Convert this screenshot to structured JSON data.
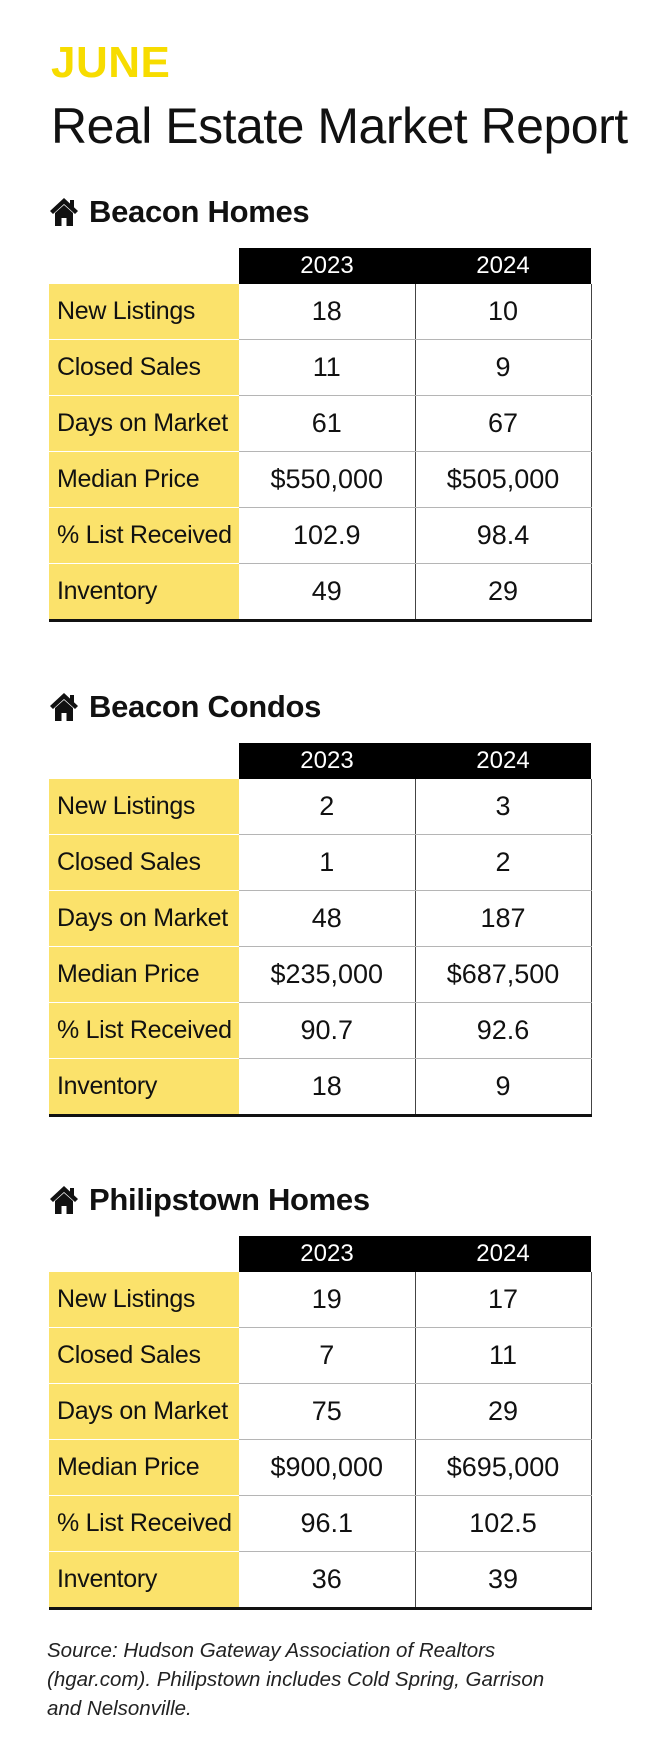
{
  "header": {
    "month": "JUNE",
    "title": "Real Estate Market Report"
  },
  "table_columns": {
    "col1": "2023",
    "col2": "2024"
  },
  "sections": [
    {
      "title": "Beacon Homes",
      "rows": [
        {
          "label": "New Listings",
          "v2023": "18",
          "v2024": "10"
        },
        {
          "label": "Closed Sales",
          "v2023": "11",
          "v2024": "9"
        },
        {
          "label": "Days on Market",
          "v2023": "61",
          "v2024": "67"
        },
        {
          "label": "Median Price",
          "v2023": "$550,000",
          "v2024": "$505,000"
        },
        {
          "label": "% List Received",
          "v2023": "102.9",
          "v2024": "98.4"
        },
        {
          "label": "Inventory",
          "v2023": "49",
          "v2024": "29"
        }
      ]
    },
    {
      "title": "Beacon Condos",
      "rows": [
        {
          "label": "New Listings",
          "v2023": "2",
          "v2024": "3"
        },
        {
          "label": "Closed Sales",
          "v2023": "1",
          "v2024": "2"
        },
        {
          "label": "Days on Market",
          "v2023": "48",
          "v2024": "187"
        },
        {
          "label": "Median Price",
          "v2023": "$235,000",
          "v2024": "$687,500"
        },
        {
          "label": "% List Received",
          "v2023": "90.7",
          "v2024": "92.6"
        },
        {
          "label": "Inventory",
          "v2023": "18",
          "v2024": "9"
        }
      ]
    },
    {
      "title": "Philipstown Homes",
      "rows": [
        {
          "label": "New Listings",
          "v2023": "19",
          "v2024": "17"
        },
        {
          "label": "Closed Sales",
          "v2023": "7",
          "v2024": "11"
        },
        {
          "label": "Days on Market",
          "v2023": "75",
          "v2024": "29"
        },
        {
          "label": "Median Price",
          "v2023": "$900,000",
          "v2024": "$695,000"
        },
        {
          "label": "% List Received",
          "v2023": "96.1",
          "v2024": "102.5"
        },
        {
          "label": "Inventory",
          "v2023": "36",
          "v2024": "39"
        }
      ]
    }
  ],
  "footer": {
    "source": "Source: Hudson Gateway Association of Realtors (hgar.com). Philipstown includes Cold Spring, Garrison and Nelsonville."
  },
  "colors": {
    "month_accent": "#f7dc00",
    "label_fill": "#fbe26b",
    "header_fill": "#000000"
  },
  "icons": {
    "section_icon": "home-icon"
  }
}
